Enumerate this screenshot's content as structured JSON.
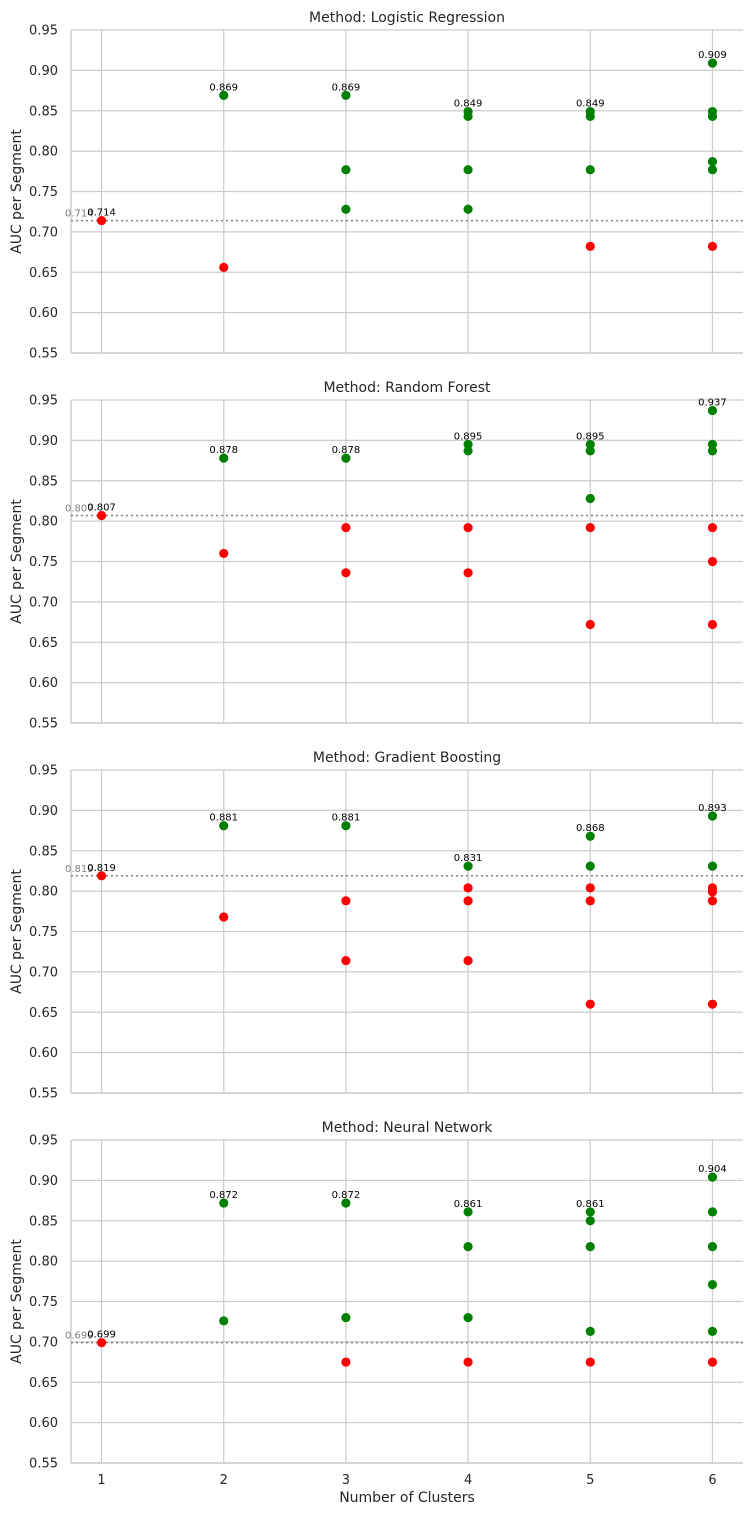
{
  "chart_data": {
    "type": "scatter",
    "shared_x_axis": {
      "label": "Number of Clusters",
      "ticks": [
        1,
        2,
        3,
        4,
        5,
        6
      ],
      "range": [
        0.75,
        6.25
      ]
    },
    "colors": {
      "above_baseline": "#008000",
      "below_baseline": "#ff0000",
      "baseline": "#808080"
    },
    "grid": true,
    "panels": [
      {
        "title": "Method: Logistic Regression",
        "ylabel": "AUC per Segment",
        "ylim": [
          0.55,
          0.95
        ],
        "yticks": [
          "0.55",
          "0.60",
          "0.65",
          "0.70",
          "0.75",
          "0.80",
          "0.85",
          "0.90",
          "0.95"
        ],
        "baseline": {
          "value": 0.714,
          "label": "0.714"
        },
        "points": [
          {
            "x": 1,
            "y": 0.714,
            "group": "below"
          },
          {
            "x": 2,
            "y": 0.869,
            "group": "above"
          },
          {
            "x": 2,
            "y": 0.656,
            "group": "below"
          },
          {
            "x": 3,
            "y": 0.869,
            "group": "above"
          },
          {
            "x": 3,
            "y": 0.777,
            "group": "above"
          },
          {
            "x": 3,
            "y": 0.728,
            "group": "above"
          },
          {
            "x": 4,
            "y": 0.849,
            "group": "above"
          },
          {
            "x": 4,
            "y": 0.843,
            "group": "above"
          },
          {
            "x": 4,
            "y": 0.777,
            "group": "above"
          },
          {
            "x": 4,
            "y": 0.728,
            "group": "above"
          },
          {
            "x": 5,
            "y": 0.849,
            "group": "above"
          },
          {
            "x": 5,
            "y": 0.843,
            "group": "above"
          },
          {
            "x": 5,
            "y": 0.777,
            "group": "above"
          },
          {
            "x": 5,
            "y": 0.682,
            "group": "below"
          },
          {
            "x": 6,
            "y": 0.909,
            "group": "above"
          },
          {
            "x": 6,
            "y": 0.849,
            "group": "above"
          },
          {
            "x": 6,
            "y": 0.843,
            "group": "above"
          },
          {
            "x": 6,
            "y": 0.787,
            "group": "above"
          },
          {
            "x": 6,
            "y": 0.777,
            "group": "above"
          },
          {
            "x": 6,
            "y": 0.682,
            "group": "below"
          }
        ],
        "max_labels": [
          {
            "x": 1,
            "y": 0.714,
            "text": "0.714"
          },
          {
            "x": 2,
            "y": 0.869,
            "text": "0.869"
          },
          {
            "x": 3,
            "y": 0.869,
            "text": "0.869"
          },
          {
            "x": 4,
            "y": 0.849,
            "text": "0.849"
          },
          {
            "x": 5,
            "y": 0.849,
            "text": "0.849"
          },
          {
            "x": 6,
            "y": 0.909,
            "text": "0.909"
          }
        ]
      },
      {
        "title": "Method: Random Forest",
        "ylabel": "AUC per Segment",
        "ylim": [
          0.55,
          0.95
        ],
        "yticks": [
          "0.55",
          "0.60",
          "0.65",
          "0.70",
          "0.75",
          "0.80",
          "0.85",
          "0.90",
          "0.95"
        ],
        "baseline": {
          "value": 0.807,
          "label": "0.807"
        },
        "points": [
          {
            "x": 1,
            "y": 0.807,
            "group": "below"
          },
          {
            "x": 2,
            "y": 0.878,
            "group": "above"
          },
          {
            "x": 2,
            "y": 0.76,
            "group": "below"
          },
          {
            "x": 3,
            "y": 0.878,
            "group": "above"
          },
          {
            "x": 3,
            "y": 0.792,
            "group": "below"
          },
          {
            "x": 3,
            "y": 0.736,
            "group": "below"
          },
          {
            "x": 4,
            "y": 0.895,
            "group": "above"
          },
          {
            "x": 4,
            "y": 0.887,
            "group": "above"
          },
          {
            "x": 4,
            "y": 0.792,
            "group": "below"
          },
          {
            "x": 4,
            "y": 0.736,
            "group": "below"
          },
          {
            "x": 5,
            "y": 0.895,
            "group": "above"
          },
          {
            "x": 5,
            "y": 0.887,
            "group": "above"
          },
          {
            "x": 5,
            "y": 0.828,
            "group": "above"
          },
          {
            "x": 5,
            "y": 0.792,
            "group": "below"
          },
          {
            "x": 5,
            "y": 0.672,
            "group": "below"
          },
          {
            "x": 6,
            "y": 0.937,
            "group": "above"
          },
          {
            "x": 6,
            "y": 0.895,
            "group": "above"
          },
          {
            "x": 6,
            "y": 0.887,
            "group": "above"
          },
          {
            "x": 6,
            "y": 0.792,
            "group": "below"
          },
          {
            "x": 6,
            "y": 0.75,
            "group": "below"
          },
          {
            "x": 6,
            "y": 0.672,
            "group": "below"
          }
        ],
        "max_labels": [
          {
            "x": 1,
            "y": 0.807,
            "text": "0.807"
          },
          {
            "x": 2,
            "y": 0.878,
            "text": "0.878"
          },
          {
            "x": 3,
            "y": 0.878,
            "text": "0.878"
          },
          {
            "x": 4,
            "y": 0.895,
            "text": "0.895"
          },
          {
            "x": 5,
            "y": 0.895,
            "text": "0.895"
          },
          {
            "x": 6,
            "y": 0.937,
            "text": "0.937"
          }
        ]
      },
      {
        "title": "Method: Gradient Boosting",
        "ylabel": "AUC per Segment",
        "ylim": [
          0.55,
          0.95
        ],
        "yticks": [
          "0.55",
          "0.60",
          "0.65",
          "0.70",
          "0.75",
          "0.80",
          "0.85",
          "0.90",
          "0.95"
        ],
        "baseline": {
          "value": 0.819,
          "label": "0.819"
        },
        "points": [
          {
            "x": 1,
            "y": 0.819,
            "group": "below"
          },
          {
            "x": 2,
            "y": 0.881,
            "group": "above"
          },
          {
            "x": 2,
            "y": 0.768,
            "group": "below"
          },
          {
            "x": 3,
            "y": 0.881,
            "group": "above"
          },
          {
            "x": 3,
            "y": 0.788,
            "group": "below"
          },
          {
            "x": 3,
            "y": 0.714,
            "group": "below"
          },
          {
            "x": 4,
            "y": 0.831,
            "group": "above"
          },
          {
            "x": 4,
            "y": 0.804,
            "group": "below"
          },
          {
            "x": 4,
            "y": 0.788,
            "group": "below"
          },
          {
            "x": 4,
            "y": 0.714,
            "group": "below"
          },
          {
            "x": 5,
            "y": 0.868,
            "group": "above"
          },
          {
            "x": 5,
            "y": 0.831,
            "group": "above"
          },
          {
            "x": 5,
            "y": 0.804,
            "group": "below"
          },
          {
            "x": 5,
            "y": 0.788,
            "group": "below"
          },
          {
            "x": 5,
            "y": 0.66,
            "group": "below"
          },
          {
            "x": 6,
            "y": 0.893,
            "group": "above"
          },
          {
            "x": 6,
            "y": 0.831,
            "group": "above"
          },
          {
            "x": 6,
            "y": 0.804,
            "group": "below"
          },
          {
            "x": 6,
            "y": 0.799,
            "group": "below"
          },
          {
            "x": 6,
            "y": 0.788,
            "group": "below"
          },
          {
            "x": 6,
            "y": 0.66,
            "group": "below"
          }
        ],
        "max_labels": [
          {
            "x": 1,
            "y": 0.819,
            "text": "0.819"
          },
          {
            "x": 2,
            "y": 0.881,
            "text": "0.881"
          },
          {
            "x": 3,
            "y": 0.881,
            "text": "0.881"
          },
          {
            "x": 4,
            "y": 0.831,
            "text": "0.831"
          },
          {
            "x": 5,
            "y": 0.868,
            "text": "0.868"
          },
          {
            "x": 6,
            "y": 0.893,
            "text": "0.893"
          }
        ]
      },
      {
        "title": "Method: Neural Network",
        "ylabel": "AUC per Segment",
        "ylim": [
          0.55,
          0.95
        ],
        "yticks": [
          "0.55",
          "0.60",
          "0.65",
          "0.70",
          "0.75",
          "0.80",
          "0.85",
          "0.90",
          "0.95"
        ],
        "baseline": {
          "value": 0.699,
          "label": "0.699"
        },
        "points": [
          {
            "x": 1,
            "y": 0.699,
            "group": "below"
          },
          {
            "x": 2,
            "y": 0.872,
            "group": "above"
          },
          {
            "x": 2,
            "y": 0.726,
            "group": "above"
          },
          {
            "x": 3,
            "y": 0.872,
            "group": "above"
          },
          {
            "x": 3,
            "y": 0.73,
            "group": "above"
          },
          {
            "x": 3,
            "y": 0.675,
            "group": "below"
          },
          {
            "x": 4,
            "y": 0.861,
            "group": "above"
          },
          {
            "x": 4,
            "y": 0.818,
            "group": "above"
          },
          {
            "x": 4,
            "y": 0.73,
            "group": "above"
          },
          {
            "x": 4,
            "y": 0.675,
            "group": "below"
          },
          {
            "x": 5,
            "y": 0.861,
            "group": "above"
          },
          {
            "x": 5,
            "y": 0.85,
            "group": "above"
          },
          {
            "x": 5,
            "y": 0.818,
            "group": "above"
          },
          {
            "x": 5,
            "y": 0.713,
            "group": "above"
          },
          {
            "x": 5,
            "y": 0.675,
            "group": "below"
          },
          {
            "x": 6,
            "y": 0.904,
            "group": "above"
          },
          {
            "x": 6,
            "y": 0.861,
            "group": "above"
          },
          {
            "x": 6,
            "y": 0.818,
            "group": "above"
          },
          {
            "x": 6,
            "y": 0.771,
            "group": "above"
          },
          {
            "x": 6,
            "y": 0.713,
            "group": "above"
          },
          {
            "x": 6,
            "y": 0.675,
            "group": "below"
          }
        ],
        "max_labels": [
          {
            "x": 1,
            "y": 0.699,
            "text": "0.699"
          },
          {
            "x": 2,
            "y": 0.872,
            "text": "0.872"
          },
          {
            "x": 3,
            "y": 0.872,
            "text": "0.872"
          },
          {
            "x": 4,
            "y": 0.861,
            "text": "0.861"
          },
          {
            "x": 5,
            "y": 0.861,
            "text": "0.861"
          },
          {
            "x": 6,
            "y": 0.904,
            "text": "0.904"
          }
        ]
      }
    ]
  }
}
